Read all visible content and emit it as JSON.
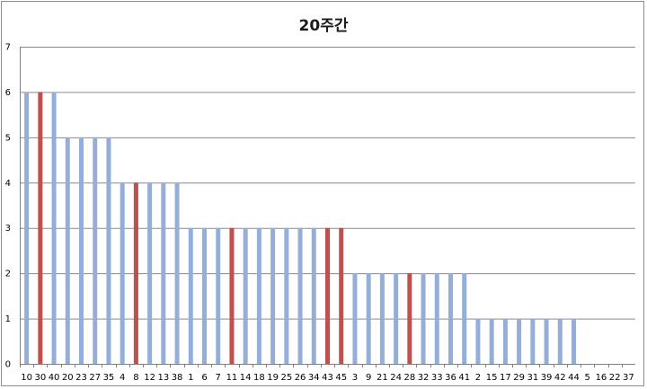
{
  "chart_data": {
    "type": "bar",
    "title": "20주간",
    "xlabel": "",
    "ylabel": "",
    "ylim": [
      0,
      7
    ],
    "yticks": [
      0,
      1,
      2,
      3,
      4,
      5,
      6,
      7
    ],
    "grid": true,
    "legend": "none",
    "categories": [
      "10",
      "30",
      "40",
      "20",
      "23",
      "27",
      "35",
      "4",
      "8",
      "12",
      "13",
      "38",
      "1",
      "6",
      "7",
      "11",
      "14",
      "18",
      "19",
      "25",
      "26",
      "34",
      "43",
      "45",
      "3",
      "9",
      "21",
      "24",
      "28",
      "32",
      "33",
      "36",
      "41",
      "2",
      "15",
      "17",
      "29",
      "31",
      "39",
      "42",
      "44",
      "5",
      "16",
      "22",
      "37"
    ],
    "values": [
      6,
      6,
      6,
      5,
      5,
      5,
      5,
      4,
      4,
      4,
      4,
      4,
      3,
      3,
      3,
      3,
      3,
      3,
      3,
      3,
      3,
      3,
      3,
      3,
      2,
      2,
      2,
      2,
      2,
      2,
      2,
      2,
      2,
      1,
      1,
      1,
      1,
      1,
      1,
      1,
      1,
      0,
      0,
      0,
      0
    ],
    "highlighted": [
      "30",
      "8",
      "11",
      "43",
      "45",
      "28"
    ],
    "colors": {
      "default": "#94aed8",
      "highlight": "#c0504d",
      "grid": "#8a8a8a",
      "axis": "#808080"
    }
  }
}
